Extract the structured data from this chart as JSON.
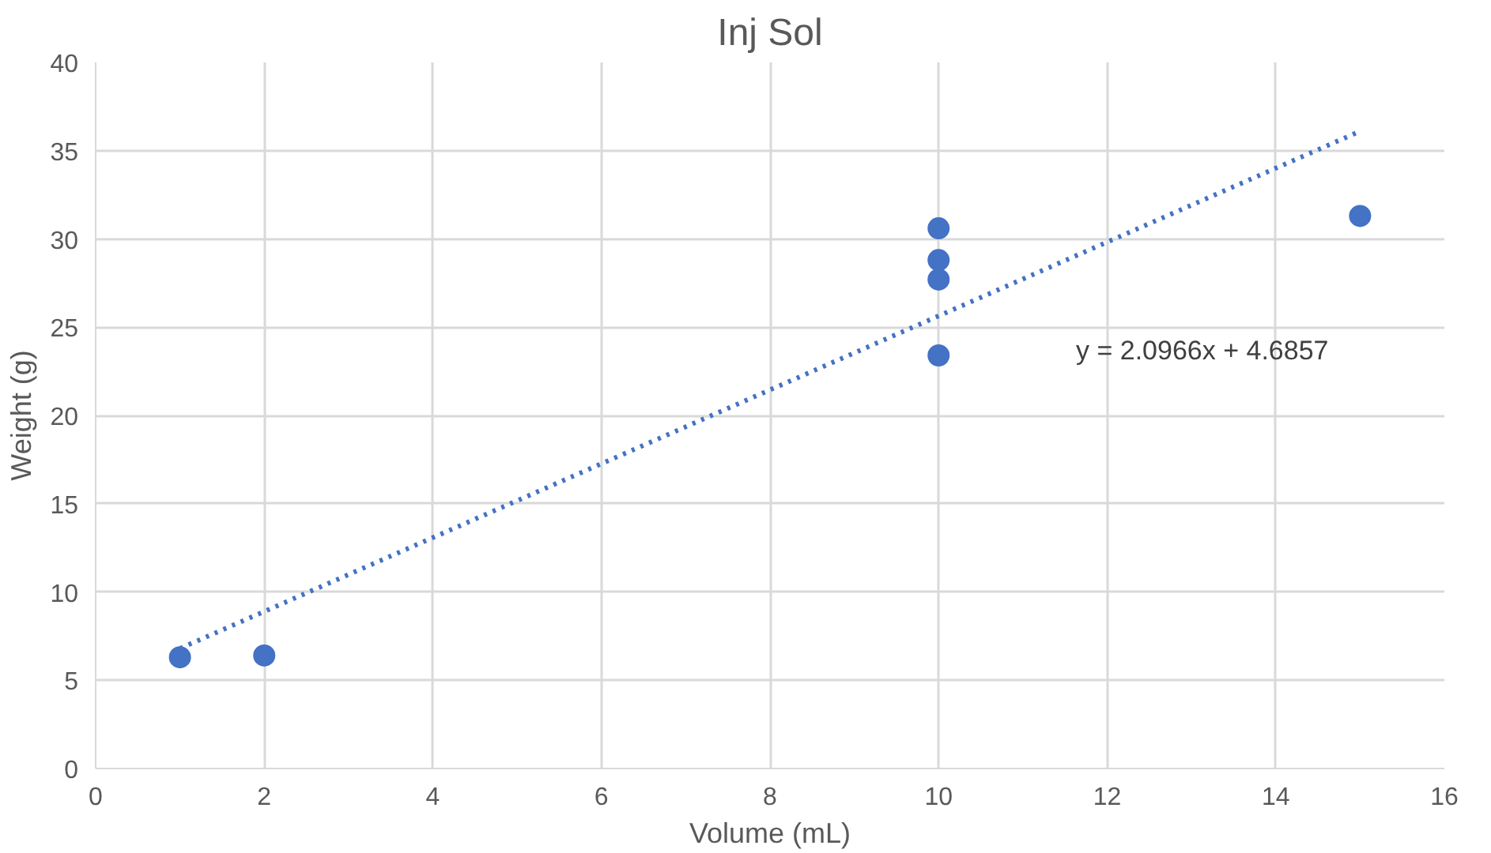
{
  "chart_data": {
    "type": "scatter",
    "title": "Inj Sol",
    "xlabel": "Volume (mL)",
    "ylabel": "Weight (g)",
    "xlim": [
      0,
      16
    ],
    "xticks": [
      0,
      2,
      4,
      6,
      8,
      10,
      12,
      14,
      16
    ],
    "ylim": [
      0,
      40
    ],
    "yticks": [
      0,
      5,
      10,
      15,
      20,
      25,
      30,
      35,
      40
    ],
    "grid": true,
    "marker": "circle",
    "series": [
      {
        "color": "#4472c4",
        "x": [
          1,
          2,
          10,
          10,
          10,
          10,
          15
        ],
        "values": [
          6.3,
          6.4,
          30.6,
          28.8,
          27.7,
          23.4,
          31.3
        ]
      },
      {
        "type": "line",
        "color": "#4472c4",
        "line_style": "dotted",
        "marker": "none",
        "x": [
          1,
          15
        ],
        "values": [
          6.8,
          36.1
        ]
      }
    ],
    "annotations": [
      "y = 2.0966x + 4.6857"
    ]
  }
}
